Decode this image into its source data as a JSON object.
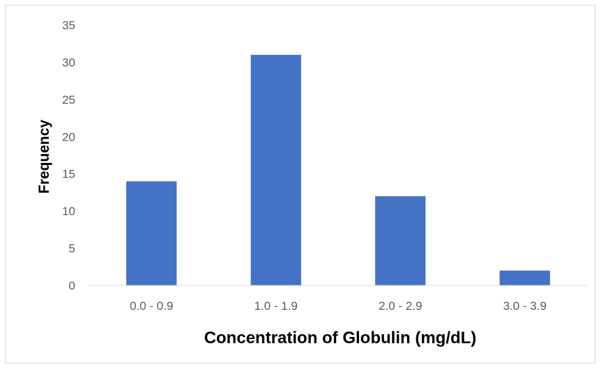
{
  "chart_data": {
    "type": "bar",
    "categories": [
      "0.0 - 0.9",
      "1.0 - 1.9",
      "2.0 - 2.9",
      "3.0 - 3.9"
    ],
    "values": [
      14,
      31,
      12,
      2
    ],
    "xlabel": "Concentration of Globulin (mg/dL)",
    "ylabel": "Frequency",
    "ylim": [
      0,
      35
    ],
    "yticks": [
      0,
      5,
      10,
      15,
      20,
      25,
      30,
      35
    ],
    "grid": false,
    "legend": "none",
    "bar_color": "#4472C4"
  }
}
